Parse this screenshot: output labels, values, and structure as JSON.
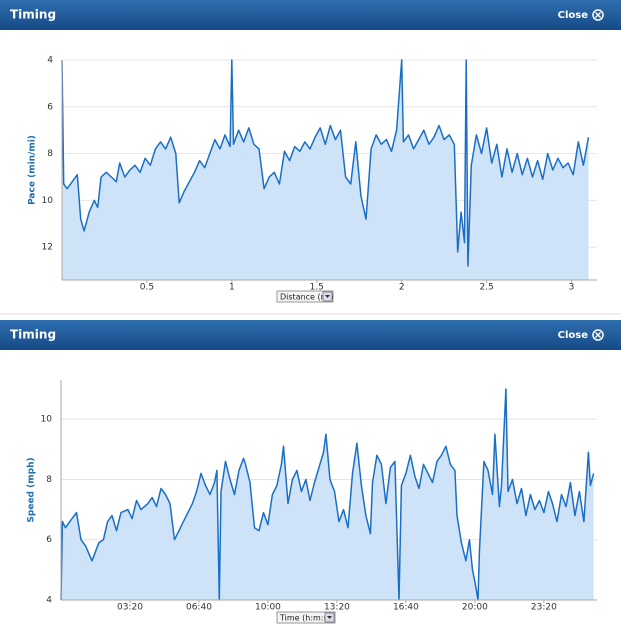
{
  "panels": [
    {
      "header": "Timing",
      "close": "Close",
      "selector": "Distance (mi)"
    },
    {
      "header": "Timing",
      "close": "Close",
      "selector": "Time (h:m:s)"
    }
  ],
  "chart_data": [
    {
      "type": "line",
      "y_label": "Pace (min/mi)",
      "color": "#1a6fc4",
      "area_color": "#cfe3f8",
      "xlim": [
        0,
        3.15
      ],
      "xticks": [
        0.5,
        1,
        1.5,
        2,
        2.5,
        3
      ],
      "ylim": [
        13.4,
        4
      ],
      "yticks": [
        4,
        6,
        8,
        10,
        12
      ],
      "grid": true,
      "x": [
        0.0,
        0.01,
        0.03,
        0.06,
        0.09,
        0.11,
        0.13,
        0.16,
        0.19,
        0.21,
        0.23,
        0.26,
        0.29,
        0.32,
        0.34,
        0.37,
        0.4,
        0.43,
        0.46,
        0.49,
        0.52,
        0.55,
        0.58,
        0.61,
        0.64,
        0.67,
        0.69,
        0.72,
        0.75,
        0.78,
        0.81,
        0.84,
        0.87,
        0.9,
        0.93,
        0.96,
        0.99,
        1.0,
        1.01,
        1.04,
        1.07,
        1.1,
        1.13,
        1.16,
        1.19,
        1.22,
        1.25,
        1.28,
        1.31,
        1.34,
        1.37,
        1.4,
        1.43,
        1.46,
        1.49,
        1.52,
        1.55,
        1.58,
        1.61,
        1.64,
        1.67,
        1.7,
        1.73,
        1.76,
        1.79,
        1.82,
        1.85,
        1.88,
        1.91,
        1.94,
        1.97,
        2.0,
        2.01,
        2.04,
        2.07,
        2.1,
        2.13,
        2.16,
        2.19,
        2.22,
        2.25,
        2.28,
        2.31,
        2.33,
        2.35,
        2.37,
        2.38,
        2.39,
        2.41,
        2.44,
        2.47,
        2.5,
        2.53,
        2.56,
        2.59,
        2.62,
        2.65,
        2.68,
        2.71,
        2.74,
        2.77,
        2.8,
        2.83,
        2.86,
        2.89,
        2.92,
        2.95,
        2.98,
        3.01,
        3.04,
        3.07,
        3.1
      ],
      "values": [
        4.0,
        9.3,
        9.5,
        9.2,
        8.9,
        10.8,
        11.3,
        10.5,
        10.0,
        10.3,
        9.0,
        8.8,
        9.0,
        9.2,
        8.4,
        9.0,
        8.7,
        8.5,
        8.8,
        8.2,
        8.5,
        7.8,
        7.5,
        7.8,
        7.3,
        8.0,
        10.1,
        9.6,
        9.2,
        8.8,
        8.3,
        8.6,
        8.0,
        7.4,
        7.8,
        7.2,
        7.7,
        4.0,
        7.6,
        7.0,
        7.5,
        6.9,
        7.6,
        7.8,
        9.5,
        9.0,
        8.8,
        9.3,
        7.9,
        8.3,
        7.7,
        7.9,
        7.5,
        7.8,
        7.3,
        6.9,
        7.6,
        6.8,
        7.4,
        7.0,
        9.0,
        9.3,
        7.5,
        9.8,
        10.8,
        7.8,
        7.2,
        7.6,
        7.4,
        7.9,
        7.0,
        4.0,
        7.5,
        7.2,
        7.8,
        7.4,
        7.0,
        7.6,
        7.3,
        6.8,
        7.4,
        7.2,
        7.6,
        12.2,
        10.5,
        11.8,
        4.0,
        12.8,
        8.5,
        7.2,
        8.0,
        6.9,
        8.4,
        7.6,
        9.0,
        7.8,
        8.8,
        8.0,
        8.9,
        8.2,
        9.0,
        8.3,
        9.1,
        8.0,
        8.7,
        8.2,
        8.6,
        8.4,
        8.9,
        7.5,
        8.5,
        7.3
      ]
    },
    {
      "type": "line",
      "y_label": "Speed (mph)",
      "color": "#1a6fc4",
      "area_color": "#cfe3f8",
      "xlim": [
        0,
        1554
      ],
      "xticks": [
        {
          "value": 200,
          "label": "03:20"
        },
        {
          "value": 400,
          "label": "06:40"
        },
        {
          "value": 600,
          "label": "10:00"
        },
        {
          "value": 800,
          "label": "13:20"
        },
        {
          "value": 1000,
          "label": "16:40"
        },
        {
          "value": 1200,
          "label": "20:00"
        },
        {
          "value": 1400,
          "label": "23:20"
        }
      ],
      "ylim": [
        4,
        11.3
      ],
      "yticks": [
        4,
        6,
        8,
        10
      ],
      "grid": true,
      "x": [
        0,
        4,
        13,
        32,
        45,
        58,
        71,
        90,
        110,
        123,
        135,
        148,
        161,
        174,
        194,
        206,
        219,
        232,
        252,
        264,
        277,
        290,
        303,
        316,
        329,
        342,
        355,
        368,
        381,
        393,
        406,
        419,
        432,
        445,
        452,
        459,
        464,
        477,
        490,
        503,
        516,
        529,
        535,
        548,
        561,
        574,
        587,
        600,
        613,
        626,
        639,
        645,
        658,
        671,
        684,
        697,
        710,
        722,
        735,
        748,
        761,
        768,
        780,
        793,
        806,
        819,
        832,
        845,
        858,
        871,
        884,
        897,
        903,
        916,
        929,
        942,
        955,
        968,
        980,
        987,
        1000,
        1013,
        1026,
        1038,
        1051,
        1064,
        1077,
        1090,
        1103,
        1116,
        1129,
        1142,
        1148,
        1161,
        1174,
        1184,
        1193,
        1200,
        1209,
        1213,
        1226,
        1238,
        1251,
        1258,
        1271,
        1277,
        1290,
        1296,
        1309,
        1322,
        1335,
        1348,
        1361,
        1374,
        1387,
        1400,
        1413,
        1425,
        1438,
        1451,
        1464,
        1477,
        1490,
        1503,
        1516,
        1529,
        1535,
        1544
      ],
      "values": [
        4,
        6.6,
        6.4,
        6.7,
        6.9,
        6.0,
        5.8,
        5.3,
        5.9,
        6.0,
        6.6,
        6.8,
        6.3,
        6.9,
        7.0,
        6.7,
        7.3,
        7.0,
        7.2,
        7.4,
        7.1,
        7.7,
        7.5,
        7.2,
        6.0,
        6.3,
        6.6,
        6.9,
        7.2,
        7.6,
        8.2,
        7.8,
        7.5,
        7.9,
        8.3,
        4,
        7.6,
        8.6,
        8.0,
        7.5,
        8.3,
        8.7,
        8.5,
        7.9,
        6.4,
        6.3,
        6.9,
        6.5,
        7.5,
        7.8,
        8.5,
        9.1,
        7.2,
        8.0,
        8.3,
        7.6,
        8.0,
        7.3,
        7.9,
        8.4,
        8.9,
        9.5,
        8.0,
        7.6,
        6.6,
        7.0,
        6.4,
        8.2,
        9.2,
        7.8,
        6.8,
        6.2,
        7.9,
        8.8,
        8.5,
        7.2,
        8.4,
        8.6,
        4,
        7.8,
        8.2,
        8.8,
        8.1,
        7.7,
        8.5,
        8.2,
        7.9,
        8.6,
        8.8,
        9.1,
        8.5,
        8.3,
        6.8,
        5.9,
        5.3,
        6.0,
        5.0,
        4.6,
        4,
        5.6,
        8.6,
        8.3,
        7.5,
        9.5,
        7.1,
        7.8,
        11.0,
        7.6,
        8.0,
        7.2,
        7.7,
        6.8,
        7.5,
        7.0,
        7.3,
        6.9,
        7.6,
        7.2,
        6.6,
        7.5,
        7.1,
        7.9,
        6.8,
        7.6,
        6.6,
        8.9,
        7.8,
        8.2
      ]
    }
  ]
}
